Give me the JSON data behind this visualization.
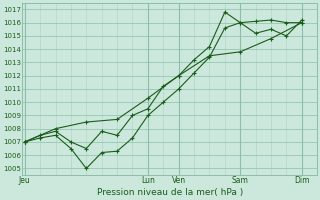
{
  "title": "Pression niveau de la mer( hPa )",
  "background_color": "#cce8dc",
  "grid_color_major": "#8cbfaa",
  "grid_color_minor": "#aad4c0",
  "line_color": "#1a5c1a",
  "ylim": [
    1004.5,
    1017.5
  ],
  "yticks": [
    1005,
    1006,
    1007,
    1008,
    1009,
    1010,
    1011,
    1012,
    1013,
    1014,
    1015,
    1016,
    1017
  ],
  "x_day_labels": [
    "Jeu",
    "Lun",
    "Ven",
    "Sam",
    "Dim"
  ],
  "x_day_positions": [
    0,
    48,
    60,
    84,
    108
  ],
  "x_vlines_dark": [
    0,
    48,
    60,
    84,
    108
  ],
  "x_vlines_minor": [
    6,
    12,
    18,
    24,
    30,
    36,
    42,
    54,
    66,
    72,
    78,
    90,
    96,
    102
  ],
  "xlim": [
    -1,
    114
  ],
  "series1_x": [
    0,
    6,
    12,
    18,
    24,
    30,
    36,
    42,
    48,
    54,
    60,
    66,
    72,
    78,
    84,
    90,
    96,
    102,
    108
  ],
  "series1_y": [
    1007.0,
    1007.3,
    1007.5,
    1006.5,
    1005.0,
    1006.2,
    1006.3,
    1007.3,
    1009.0,
    1010.0,
    1011.0,
    1012.2,
    1013.4,
    1015.6,
    1016.0,
    1016.1,
    1016.2,
    1016.0,
    1016.0
  ],
  "series2_x": [
    0,
    6,
    12,
    18,
    24,
    30,
    36,
    42,
    48,
    54,
    60,
    66,
    72,
    78,
    84,
    90,
    96,
    102,
    108
  ],
  "series2_y": [
    1007.0,
    1007.5,
    1007.8,
    1007.0,
    1006.5,
    1007.8,
    1007.5,
    1009.0,
    1009.5,
    1011.2,
    1012.0,
    1013.2,
    1014.2,
    1016.8,
    1016.0,
    1015.2,
    1015.5,
    1015.0,
    1016.2
  ],
  "series3_x": [
    0,
    12,
    24,
    36,
    48,
    60,
    72,
    84,
    96,
    108
  ],
  "series3_y": [
    1007.0,
    1008.0,
    1008.5,
    1008.7,
    1010.3,
    1012.0,
    1013.5,
    1013.8,
    1014.8,
    1016.0
  ]
}
